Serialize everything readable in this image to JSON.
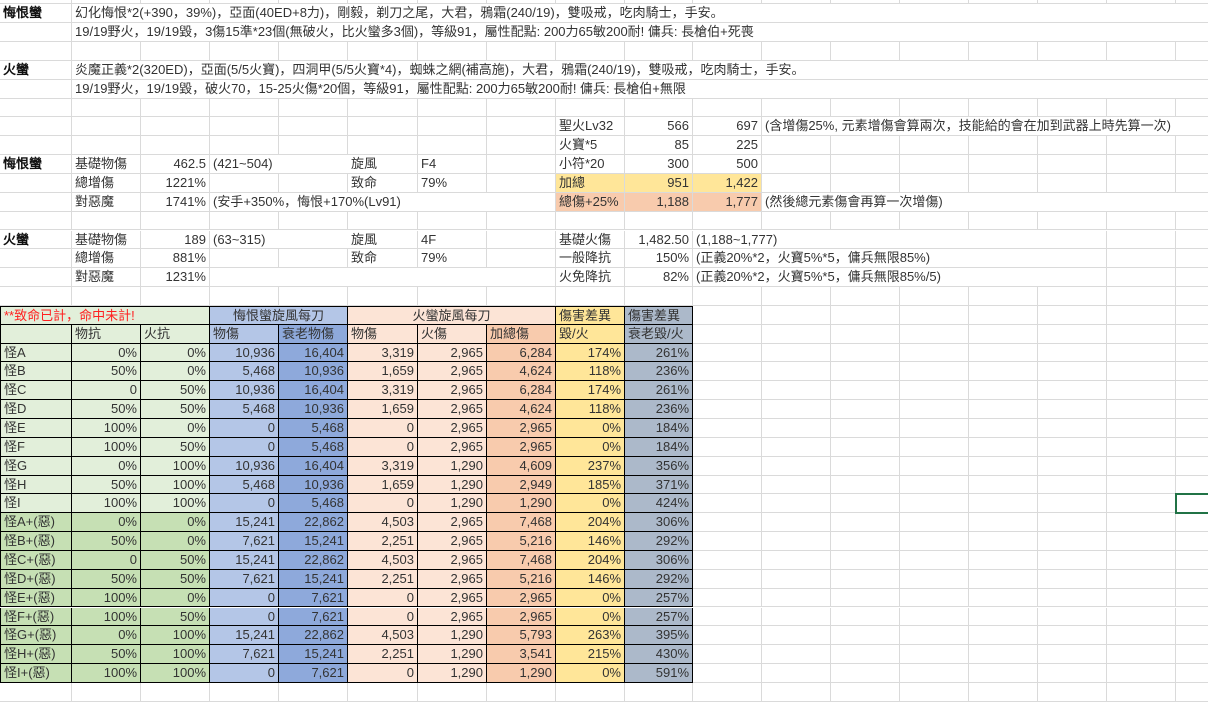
{
  "builds": [
    {
      "name": "悔恨蠻",
      "line1": "幻化悔恨*2(+390，39%)，亞面(40ED+8力)，剛毅，剃刀之尾，大君，鴉霜(240/19)，雙吸戒，吃肉騎士，手安。",
      "line2": "19/19野火，19/19毀，3傷15準*23個(無破火，比火蠻多3個)，等級91，屬性配點: 200力65敏200耐! 傭兵: 長槍伯+死喪"
    },
    {
      "name": "火蠻",
      "line1": "炎魔正義*2(320ED)，亞面(5/5火寶)，四洞甲(5/5火寶*4)，蜘蛛之網(補高施)，大君，鴉霜(240/19)，雙吸戒，吃肉騎士，手安。",
      "line2": "19/19野火，19/19毀，破火70，15-25火傷*20個，等級91，屬性配點: 200力65敏200耐! 傭兵: 長槍伯+無限"
    }
  ],
  "stats": [
    {
      "name": "悔恨蠻",
      "rows": [
        {
          "label": "基礎物傷",
          "value": "462.5",
          "note": "(421~504)"
        },
        {
          "label": "總增傷",
          "value": "1221%",
          "note": ""
        },
        {
          "label": "對惡魔",
          "value": "1741%",
          "note": "(安手+350%，悔恨+170%(Lv91)"
        }
      ],
      "whirl_label": "旋風",
      "whirl": "F4",
      "crit_label": "致命",
      "crit": "79%"
    },
    {
      "name": "火蠻",
      "rows": [
        {
          "label": "基礎物傷",
          "value": "189",
          "note": "(63~315)"
        },
        {
          "label": "總增傷",
          "value": "881%",
          "note": ""
        },
        {
          "label": "對惡魔",
          "value": "1231%",
          "note": ""
        }
      ],
      "whirl_label": "旋風",
      "whirl": "4F",
      "crit_label": "致命",
      "crit": "79%"
    }
  ],
  "fire_calc": {
    "rows": [
      {
        "label": "聖火Lv32",
        "min": "566",
        "max": "697",
        "note": "(含增傷25%, 元素增傷會算兩次，技能給的會在加到武器上時先算一次)"
      },
      {
        "label": "火寶*5",
        "min": "85",
        "max": "225",
        "note": ""
      },
      {
        "label": "小符*20",
        "min": "300",
        "max": "500",
        "note": ""
      },
      {
        "label": "加總",
        "min": "951",
        "max": "1,422",
        "note": ""
      },
      {
        "label": "總傷+25%",
        "min": "1,188",
        "max": "1,777",
        "note": "(然後總元素傷會再算一次增傷)"
      }
    ]
  },
  "fire_stats": {
    "rows": [
      {
        "label": "基礎火傷",
        "value": "1,482.50",
        "note": "(1,188~1,777)"
      },
      {
        "label": "一般降抗",
        "value": "150%",
        "note": "(正義20%*2，火寶5%*5，傭兵無限85%)"
      },
      {
        "label": "火免降抗",
        "value": "82%",
        "note": "(正義20%*2，火寶5%*5，傭兵無限85%/5)"
      }
    ]
  },
  "table": {
    "note": "**致命已計，命中未計!",
    "groups": [
      "悔恨蠻旋風每刀",
      "火蠻旋風每刀",
      "傷害差異",
      "傷害差異"
    ],
    "columns": [
      "",
      "物抗",
      "火抗",
      "物傷",
      "衰老物傷",
      "物傷",
      "火傷",
      "加總傷",
      "毀/火",
      "衰老毀/火"
    ],
    "rows": [
      [
        "怪A",
        "0%",
        "0%",
        "10,936",
        "16,404",
        "3,319",
        "2,965",
        "6,284",
        "174%",
        "261%"
      ],
      [
        "怪B",
        "50%",
        "0%",
        "5,468",
        "10,936",
        "1,659",
        "2,965",
        "4,624",
        "118%",
        "236%"
      ],
      [
        "怪C",
        "0",
        "50%",
        "10,936",
        "16,404",
        "3,319",
        "2,965",
        "6,284",
        "174%",
        "261%"
      ],
      [
        "怪D",
        "50%",
        "50%",
        "5,468",
        "10,936",
        "1,659",
        "2,965",
        "4,624",
        "118%",
        "236%"
      ],
      [
        "怪E",
        "100%",
        "0%",
        "0",
        "5,468",
        "0",
        "2,965",
        "2,965",
        "0%",
        "184%"
      ],
      [
        "怪F",
        "100%",
        "50%",
        "0",
        "5,468",
        "0",
        "2,965",
        "2,965",
        "0%",
        "184%"
      ],
      [
        "怪G",
        "0%",
        "100%",
        "10,936",
        "16,404",
        "3,319",
        "1,290",
        "4,609",
        "237%",
        "356%"
      ],
      [
        "怪H",
        "50%",
        "100%",
        "5,468",
        "10,936",
        "1,659",
        "1,290",
        "2,949",
        "185%",
        "371%"
      ],
      [
        "怪I",
        "100%",
        "100%",
        "0",
        "5,468",
        "0",
        "1,290",
        "1,290",
        "0%",
        "424%"
      ],
      [
        "怪A+(惡)",
        "0%",
        "0%",
        "15,241",
        "22,862",
        "4,503",
        "2,965",
        "7,468",
        "204%",
        "306%"
      ],
      [
        "怪B+(惡)",
        "50%",
        "0%",
        "7,621",
        "15,241",
        "2,251",
        "2,965",
        "5,216",
        "146%",
        "292%"
      ],
      [
        "怪C+(惡)",
        "0",
        "50%",
        "15,241",
        "22,862",
        "4,503",
        "2,965",
        "7,468",
        "204%",
        "306%"
      ],
      [
        "怪D+(惡)",
        "50%",
        "50%",
        "7,621",
        "15,241",
        "2,251",
        "2,965",
        "5,216",
        "146%",
        "292%"
      ],
      [
        "怪E+(惡)",
        "100%",
        "0%",
        "0",
        "7,621",
        "0",
        "2,965",
        "2,965",
        "0%",
        "257%"
      ],
      [
        "怪F+(惡)",
        "100%",
        "50%",
        "0",
        "7,621",
        "0",
        "2,965",
        "2,965",
        "0%",
        "257%"
      ],
      [
        "怪G+(惡)",
        "0%",
        "100%",
        "15,241",
        "22,862",
        "4,503",
        "1,290",
        "5,793",
        "263%",
        "395%"
      ],
      [
        "怪H+(惡)",
        "50%",
        "100%",
        "7,621",
        "15,241",
        "2,251",
        "1,290",
        "3,541",
        "215%",
        "430%"
      ],
      [
        "怪I+(惡)",
        "100%",
        "100%",
        "0",
        "7,621",
        "0",
        "1,290",
        "1,290",
        "0%",
        "591%"
      ]
    ]
  },
  "colors": {
    "selection": "#217346",
    "note_red": "#ff2020",
    "yellow": "#ffe699",
    "salmon": "#f8cbad",
    "blue": "#b4c6e7",
    "blue_dark": "#8ea9db",
    "peach": "#fce4d6",
    "gray_blue": "#acb9ca",
    "green": "#e2efda",
    "green_dark": "#c6e0b4"
  }
}
